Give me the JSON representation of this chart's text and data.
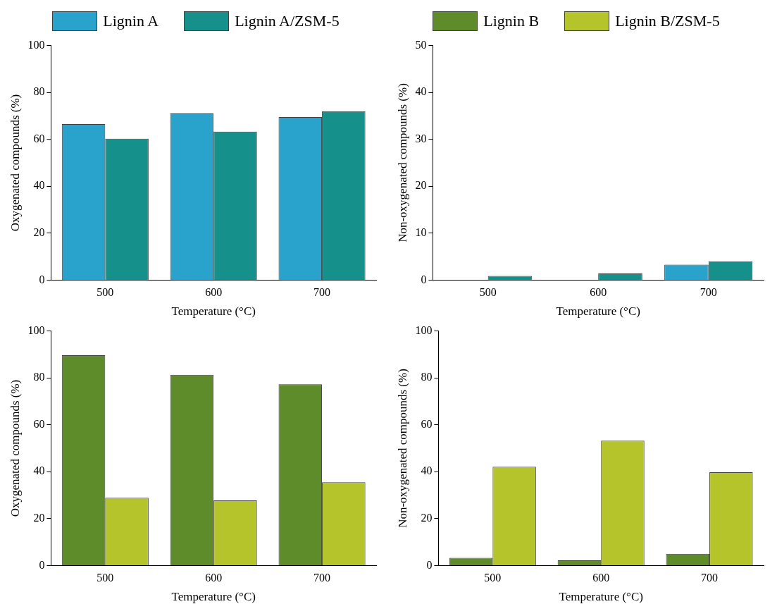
{
  "chart_data": [
    {
      "type": "bar",
      "categories": [
        "500",
        "600",
        "700"
      ],
      "xlabel": "Temperature (°C)",
      "ylabel": "Oxygenated compounds (%)",
      "ylim": [
        0,
        100
      ],
      "yticks": [
        0,
        20,
        40,
        60,
        80,
        100
      ],
      "grid": false,
      "legend": "top",
      "series": [
        {
          "name": "Lignin A",
          "color": "#29a3cc",
          "values": [
            66.5,
            71.0,
            69.5
          ]
        },
        {
          "name": "Lignin A/ZSM-5",
          "color": "#15908a",
          "values": [
            60.3,
            63.3,
            72.0
          ]
        }
      ]
    },
    {
      "type": "bar",
      "categories": [
        "500",
        "600",
        "700"
      ],
      "xlabel": "Temperature (°C)",
      "ylabel": "Non-oxygenated compounds (%)",
      "ylim": [
        0,
        50
      ],
      "yticks": [
        0,
        10,
        20,
        30,
        40,
        50
      ],
      "grid": false,
      "series": [
        {
          "name": "Lignin A",
          "color": "#29a3cc",
          "values": [
            0,
            0,
            3.3
          ]
        },
        {
          "name": "Lignin A/ZSM-5",
          "color": "#15908a",
          "values": [
            0.9,
            1.4,
            4.0
          ]
        }
      ]
    },
    {
      "type": "bar",
      "categories": [
        "500",
        "600",
        "700"
      ],
      "xlabel": "Temperature (°C)",
      "ylabel": "Oxygenated compounds (%)",
      "ylim": [
        0,
        100
      ],
      "yticks": [
        0,
        20,
        40,
        60,
        80,
        100
      ],
      "grid": false,
      "legend": "top",
      "series": [
        {
          "name": "Lignin B",
          "color": "#5e8c2a",
          "values": [
            89.7,
            81.3,
            77.3
          ]
        },
        {
          "name": "Lignin B/ZSM-5",
          "color": "#b5c42a",
          "values": [
            28.9,
            27.8,
            35.5
          ]
        }
      ]
    },
    {
      "type": "bar",
      "categories": [
        "500",
        "600",
        "700"
      ],
      "xlabel": "Temperature (°C)",
      "ylabel": "Non-oxygenated compounds (%)",
      "ylim": [
        0,
        100
      ],
      "yticks": [
        0,
        20,
        40,
        60,
        80,
        100
      ],
      "grid": false,
      "series": [
        {
          "name": "Lignin B",
          "color": "#5e8c2a",
          "values": [
            3.3,
            2.2,
            5.0
          ]
        },
        {
          "name": "Lignin B/ZSM-5",
          "color": "#b5c42a",
          "values": [
            42.1,
            53.2,
            39.8
          ]
        }
      ]
    }
  ]
}
